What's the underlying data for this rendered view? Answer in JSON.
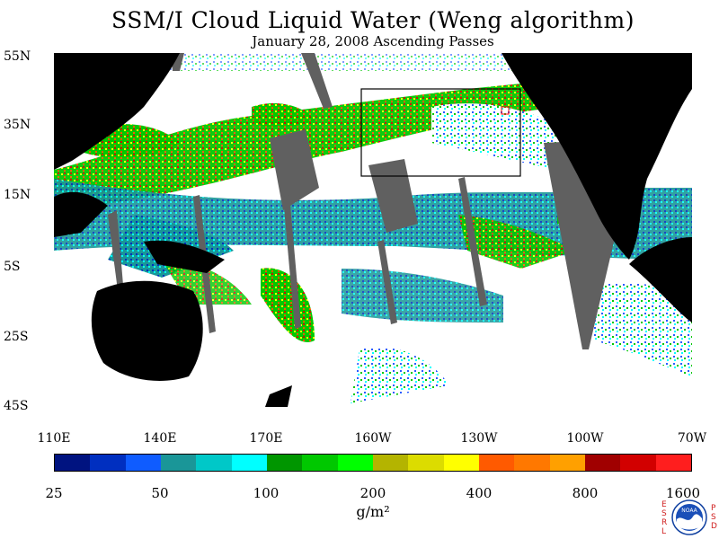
{
  "title": "SSM/I Cloud Liquid Water (Weng algorithm)",
  "subtitle": "January 28, 2008  Ascending Passes",
  "map": {
    "y_axis_labels": [
      "55N",
      "35N",
      "15N",
      "5S",
      "25S",
      "45S"
    ],
    "x_axis_labels": [
      "110E",
      "140E",
      "170E",
      "160W",
      "130W",
      "100W",
      "70W"
    ],
    "land_color": "#000000",
    "no_data_color": "#606060",
    "region_box_color": "#000000",
    "region_marker_color": "#ff0000"
  },
  "colorbar": {
    "colors": [
      "#001380",
      "#002fc0",
      "#0f5cff",
      "#1a9698",
      "#00c8c8",
      "#00ffff",
      "#009600",
      "#00c800",
      "#00ff00",
      "#b4b400",
      "#dcdc00",
      "#ffff00",
      "#ff5a00",
      "#ff7800",
      "#ffa000",
      "#a00000",
      "#d20000",
      "#ff1e1e"
    ],
    "tick_labels": [
      "25",
      "50",
      "100",
      "200",
      "400",
      "800",
      "1600"
    ],
    "unit_label": "g/m²"
  },
  "logo": {
    "left_letters": [
      "E",
      "S",
      "R",
      "L"
    ],
    "right_letters": [
      "P",
      "S",
      "D"
    ],
    "badge_text": "NOAA"
  }
}
